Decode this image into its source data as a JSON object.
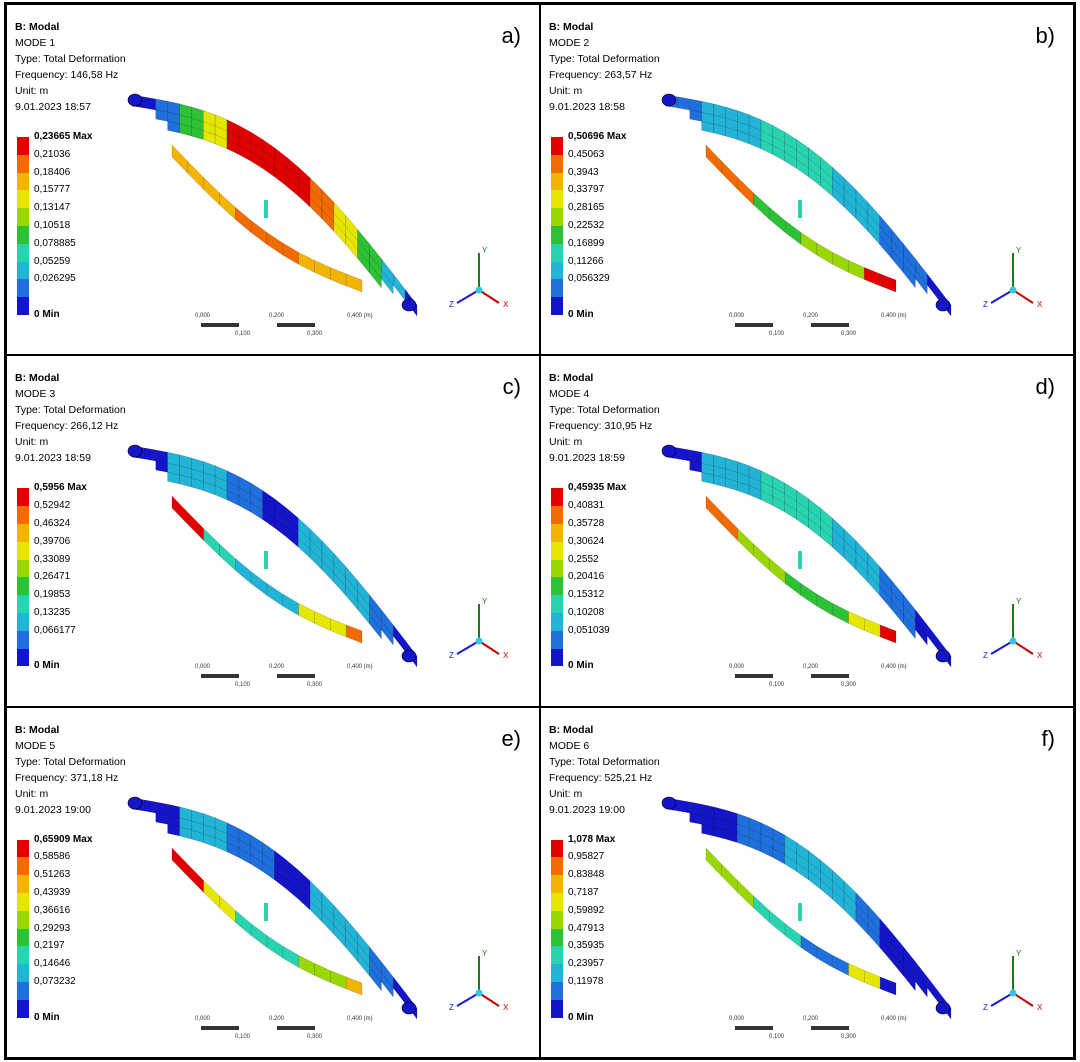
{
  "colors": [
    "#e00000",
    "#f26b00",
    "#f2b400",
    "#e6e600",
    "#9ad700",
    "#2dc236",
    "#2ad3b0",
    "#22b4d6",
    "#1f6fdc",
    "#1414c8"
  ],
  "panels": [
    {
      "title": "B: Modal",
      "mode": "MODE 1",
      "type": "Type: Total Deformation",
      "frequency": "Frequency: 146,58 Hz",
      "unit": "Unit: m",
      "date": "9.01.2023 18:57",
      "letter": "a)",
      "legend": [
        "0,23665 Max",
        "0,21036",
        "0,18406",
        "0,15777",
        "0,13147",
        "0,10518",
        "0,078885",
        "0,05259",
        "0,026295",
        "0 Min"
      ],
      "pattern": "mode1"
    },
    {
      "title": "B: Modal",
      "mode": "MODE 2",
      "type": "Type: Total Deformation",
      "frequency": "Frequency: 263,57 Hz",
      "unit": "Unit: m",
      "date": "9.01.2023 18:58",
      "letter": "b)",
      "legend": [
        "0,50696 Max",
        "0,45063",
        "0,3943",
        "0,33797",
        "0,28165",
        "0,22532",
        "0,16899",
        "0,11266",
        "0,056329",
        "0 Min"
      ],
      "pattern": "mode2"
    },
    {
      "title": "B: Modal",
      "mode": "MODE 3",
      "type": "Type: Total Deformation",
      "frequency": "Frequency: 266,12 Hz",
      "unit": "Unit: m",
      "date": "9.01.2023 18:59",
      "letter": "c)",
      "legend": [
        "0,5956 Max",
        "0,52942",
        "0,46324",
        "0,39706",
        "0,33089",
        "0,26471",
        "0,19853",
        "0,13235",
        "0,066177",
        "0 Min"
      ],
      "pattern": "mode3"
    },
    {
      "title": "B: Modal",
      "mode": "MODE 4",
      "type": "Type: Total Deformation",
      "frequency": "Frequency: 310,95 Hz",
      "unit": "Unit: m",
      "date": "9.01.2023 18:59",
      "letter": "d)",
      "legend": [
        "0,45935 Max",
        "0,40831",
        "0,35728",
        "0,30624",
        "0,2552",
        "0,20416",
        "0,15312",
        "0,10208",
        "0,051039",
        "0 Min"
      ],
      "pattern": "mode4"
    },
    {
      "title": "B: Modal",
      "mode": "MODE 5",
      "type": "Type: Total Deformation",
      "frequency": "Frequency: 371,18 Hz",
      "unit": "Unit: m",
      "date": "9.01.2023 19:00",
      "letter": "e)",
      "legend": [
        "0,65909 Max",
        "0,58586",
        "0,51263",
        "0,43939",
        "0,36616",
        "0,29293",
        "0,2197",
        "0,14646",
        "0,073232",
        "0 Min"
      ],
      "pattern": "mode5"
    },
    {
      "title": "B: Modal",
      "mode": "MODE 6",
      "type": "Type: Total Deformation",
      "frequency": "Frequency: 525,21 Hz",
      "unit": "Unit: m",
      "date": "9.01.2023 19:00",
      "letter": "f)",
      "legend": [
        "1,078 Max",
        "0,95827",
        "0,83848",
        "0,7187",
        "0,59892",
        "0,47913",
        "0,35935",
        "0,23957",
        "0,11978",
        "0 Min"
      ],
      "pattern": "mode6"
    }
  ],
  "scale_labels": {
    "a": "0,000",
    "b": "0,200",
    "c": "0,400 (m)",
    "d": "0,100",
    "e": "0,300"
  },
  "axes": {
    "x": "X",
    "y": "Y",
    "z": "Z"
  }
}
